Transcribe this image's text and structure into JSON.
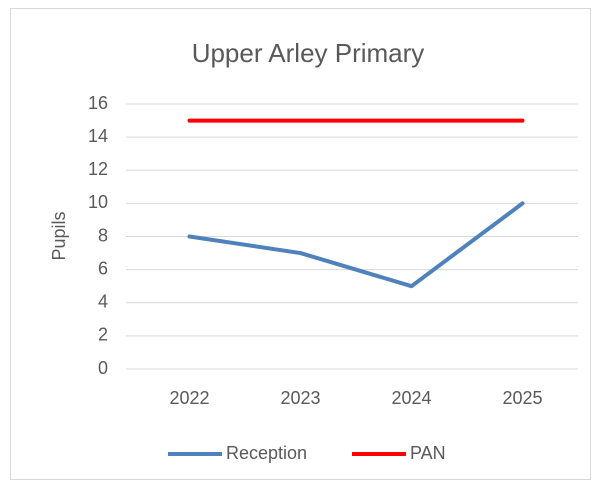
{
  "chart_data": {
    "type": "line",
    "title": "Upper Arley Primary",
    "y_label": "Pupils",
    "categories": [
      "2022",
      "2023",
      "2024",
      "2025"
    ],
    "series": [
      {
        "name": "Reception",
        "color": "#4f81bd",
        "values": [
          8,
          7,
          5,
          10
        ]
      },
      {
        "name": "PAN",
        "color": "#ff0000",
        "values": [
          15,
          15,
          15,
          15
        ]
      }
    ],
    "ylim": [
      0,
      16
    ],
    "yticks": [
      0,
      2,
      4,
      6,
      8,
      10,
      12,
      14,
      16
    ],
    "grid": true,
    "legend": "bottom"
  }
}
